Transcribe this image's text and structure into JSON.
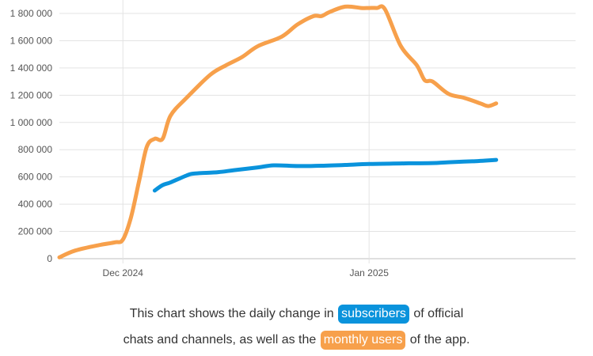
{
  "chart_data": {
    "type": "line",
    "title": "",
    "xlabel": "",
    "ylabel": "",
    "ylim": [
      0,
      1800000
    ],
    "yticks": [
      0,
      200000,
      400000,
      600000,
      800000,
      1000000,
      1200000,
      1400000,
      1600000,
      1800000
    ],
    "ytick_labels": [
      "0",
      "200 000",
      "400 000",
      "600 000",
      "800 000",
      "1 000 000",
      "1 200 000",
      "1 400 000",
      "1 600 000",
      "1 800 000"
    ],
    "xlim": [
      "2024-11-23",
      "2025-01-27"
    ],
    "xticks": [
      {
        "date": "2024-12-01",
        "label": "Dec 2024"
      },
      {
        "date": "2025-01-01",
        "label": "Jan 2025"
      }
    ],
    "grid": true,
    "series": [
      {
        "name": "monthly users",
        "color": "#f7a04b",
        "points": [
          [
            "2024-11-23",
            10000
          ],
          [
            "2024-11-25",
            60000
          ],
          [
            "2024-11-28",
            100000
          ],
          [
            "2024-11-30",
            120000
          ],
          [
            "2024-12-01",
            140000
          ],
          [
            "2024-12-02",
            300000
          ],
          [
            "2024-12-03",
            560000
          ],
          [
            "2024-12-04",
            820000
          ],
          [
            "2024-12-05",
            880000
          ],
          [
            "2024-12-06",
            880000
          ],
          [
            "2024-12-07",
            1050000
          ],
          [
            "2024-12-09",
            1180000
          ],
          [
            "2024-12-12",
            1350000
          ],
          [
            "2024-12-14",
            1420000
          ],
          [
            "2024-12-16",
            1480000
          ],
          [
            "2024-12-18",
            1560000
          ],
          [
            "2024-12-21",
            1630000
          ],
          [
            "2024-12-23",
            1720000
          ],
          [
            "2024-12-25",
            1780000
          ],
          [
            "2024-12-26",
            1780000
          ],
          [
            "2024-12-27",
            1810000
          ],
          [
            "2024-12-29",
            1850000
          ],
          [
            "2024-12-31",
            1840000
          ],
          [
            "2025-01-01",
            1840000
          ],
          [
            "2025-01-02",
            1840000
          ],
          [
            "2025-01-03",
            1830000
          ],
          [
            "2025-01-05",
            1560000
          ],
          [
            "2025-01-07",
            1420000
          ],
          [
            "2025-01-08",
            1310000
          ],
          [
            "2025-01-09",
            1300000
          ],
          [
            "2025-01-11",
            1210000
          ],
          [
            "2025-01-13",
            1180000
          ],
          [
            "2025-01-15",
            1140000
          ],
          [
            "2025-01-16",
            1120000
          ],
          [
            "2025-01-17",
            1140000
          ]
        ]
      },
      {
        "name": "subscribers",
        "color": "#0a93dc",
        "points": [
          [
            "2024-12-05",
            500000
          ],
          [
            "2024-12-06",
            540000
          ],
          [
            "2024-12-07",
            560000
          ],
          [
            "2024-12-09",
            610000
          ],
          [
            "2024-12-10",
            625000
          ],
          [
            "2024-12-13",
            635000
          ],
          [
            "2024-12-15",
            650000
          ],
          [
            "2024-12-18",
            670000
          ],
          [
            "2024-12-20",
            685000
          ],
          [
            "2024-12-23",
            680000
          ],
          [
            "2024-12-26",
            682000
          ],
          [
            "2024-12-29",
            688000
          ],
          [
            "2025-01-01",
            695000
          ],
          [
            "2025-01-04",
            698000
          ],
          [
            "2025-01-06",
            700000
          ],
          [
            "2025-01-09",
            702000
          ],
          [
            "2025-01-11",
            708000
          ],
          [
            "2025-01-14",
            715000
          ],
          [
            "2025-01-17",
            725000
          ]
        ]
      }
    ]
  },
  "caption": {
    "line1_before": "This chart shows the daily change in",
    "subscribers_label": "subscribers",
    "line1_after": "of official",
    "line2_before": "chats and channels, as well as the",
    "monthly_users_label": "monthly users",
    "line2_after": "of the app."
  }
}
